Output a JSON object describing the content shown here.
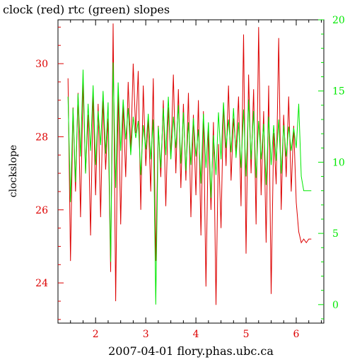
{
  "chart_data": {
    "type": "line",
    "title": "clock (red) rtc (green) slopes",
    "xlabel": "2007-04-01 flory.phas.ubc.ca",
    "ylabel": "clockslope",
    "xlim": [
      1.25,
      6.55
    ],
    "x_ticks": [
      "2",
      "3",
      "4",
      "5",
      "6"
    ],
    "y_left": {
      "lim": [
        22.9,
        31.2
      ],
      "ticks": [
        "24",
        "26",
        "28",
        "30"
      ]
    },
    "y_right": {
      "lim": [
        -1.3,
        20.0
      ],
      "ticks": [
        "0",
        "5",
        "10",
        "15",
        "20"
      ]
    },
    "grid": false,
    "colors": {
      "axes": "#000000",
      "clock": "#dd0000",
      "rtc": "#00e800"
    },
    "series": [
      {
        "name": "clock",
        "axis": "left",
        "color": "#dd0000",
        "x": [
          1.45,
          1.5,
          1.55,
          1.6,
          1.65,
          1.7,
          1.75,
          1.8,
          1.85,
          1.9,
          1.95,
          2.0,
          2.05,
          2.1,
          2.15,
          2.2,
          2.25,
          2.3,
          2.35,
          2.4,
          2.45,
          2.5,
          2.55,
          2.6,
          2.65,
          2.7,
          2.75,
          2.8,
          2.85,
          2.9,
          2.95,
          3.0,
          3.05,
          3.1,
          3.15,
          3.2,
          3.25,
          3.3,
          3.35,
          3.4,
          3.45,
          3.5,
          3.55,
          3.6,
          3.65,
          3.7,
          3.75,
          3.8,
          3.85,
          3.9,
          3.95,
          4.0,
          4.05,
          4.1,
          4.15,
          4.2,
          4.25,
          4.3,
          4.35,
          4.4,
          4.45,
          4.5,
          4.55,
          4.6,
          4.65,
          4.7,
          4.75,
          4.8,
          4.85,
          4.9,
          4.95,
          5.0,
          5.05,
          5.1,
          5.15,
          5.2,
          5.25,
          5.3,
          5.35,
          5.4,
          5.45,
          5.5,
          5.55,
          5.6,
          5.65,
          5.7,
          5.75,
          5.8,
          5.85,
          5.9,
          5.95,
          6.0,
          6.05,
          6.1,
          6.15,
          6.2,
          6.25,
          6.3
        ],
        "values": [
          29.6,
          24.6,
          28.8,
          26.5,
          29.2,
          25.8,
          29.5,
          27.0,
          28.6,
          25.3,
          29.2,
          26.4,
          28.9,
          25.8,
          29.0,
          27.1,
          28.5,
          24.3,
          31.1,
          23.5,
          29.3,
          25.6,
          28.9,
          26.9,
          29.5,
          27.6,
          30.0,
          28.1,
          29.8,
          26.0,
          29.4,
          27.2,
          28.5,
          26.5,
          29.6,
          24.6,
          28.3,
          26.9,
          29.0,
          26.1,
          28.8,
          27.4,
          29.7,
          27.0,
          29.3,
          26.6,
          28.9,
          26.8,
          29.2,
          25.8,
          28.6,
          26.4,
          29.0,
          25.3,
          28.7,
          23.9,
          28.2,
          26.0,
          28.4,
          23.4,
          27.8,
          25.5,
          28.9,
          27.2,
          29.4,
          26.8,
          28.5,
          27.6,
          29.1,
          26.1,
          30.8,
          24.8,
          29.7,
          27.0,
          29.3,
          25.6,
          31.0,
          26.4,
          28.7,
          25.1,
          29.4,
          23.7,
          28.1,
          26.7,
          30.7,
          26.0,
          28.6,
          26.9,
          29.1,
          26.5,
          28.3,
          26.2,
          25.4,
          25.1,
          25.2,
          25.1,
          25.2,
          25.2
        ]
      },
      {
        "name": "rtc",
        "axis": "right",
        "color": "#00e800",
        "x": [
          1.45,
          1.5,
          1.55,
          1.6,
          1.65,
          1.7,
          1.75,
          1.8,
          1.85,
          1.9,
          1.95,
          2.0,
          2.05,
          2.1,
          2.15,
          2.2,
          2.25,
          2.3,
          2.35,
          2.4,
          2.45,
          2.5,
          2.55,
          2.6,
          2.65,
          2.7,
          2.75,
          2.8,
          2.85,
          2.9,
          2.95,
          3.0,
          3.05,
          3.1,
          3.15,
          3.2,
          3.25,
          3.3,
          3.35,
          3.4,
          3.45,
          3.5,
          3.55,
          3.6,
          3.65,
          3.7,
          3.75,
          3.8,
          3.85,
          3.9,
          3.95,
          4.0,
          4.05,
          4.1,
          4.15,
          4.2,
          4.25,
          4.3,
          4.35,
          4.4,
          4.45,
          4.5,
          4.55,
          4.6,
          4.65,
          4.7,
          4.75,
          4.8,
          4.85,
          4.9,
          4.95,
          5.0,
          5.05,
          5.1,
          5.15,
          5.2,
          5.25,
          5.3,
          5.35,
          5.4,
          5.45,
          5.5,
          5.55,
          5.6,
          5.65,
          5.7,
          5.75,
          5.8,
          5.85,
          5.9,
          5.95,
          6.0,
          6.05,
          6.1,
          6.15,
          6.2,
          6.25,
          6.3
        ],
        "values": [
          14.6,
          7.2,
          13.8,
          8.6,
          14.8,
          10.4,
          16.5,
          9.2,
          14.1,
          10.8,
          15.4,
          9.8,
          13.6,
          11.2,
          15.0,
          10.6,
          14.2,
          3.0,
          17.0,
          8.2,
          15.6,
          10.8,
          14.4,
          11.6,
          13.8,
          10.5,
          13.2,
          11.7,
          12.9,
          9.1,
          12.6,
          10.9,
          13.4,
          10.2,
          13.0,
          0.0,
          12.5,
          9.6,
          13.8,
          10.5,
          14.6,
          10.2,
          13.2,
          11.0,
          14.0,
          9.9,
          13.5,
          9.4,
          12.8,
          9.8,
          13.1,
          10.4,
          12.3,
          8.5,
          13.4,
          9.6,
          12.8,
          7.5,
          11.9,
          9.1,
          13.5,
          10.2,
          14.2,
          11.0,
          13.0,
          10.7,
          13.8,
          10.3,
          12.8,
          9.6,
          13.7,
          9.0,
          14.4,
          10.2,
          13.6,
          8.9,
          12.9,
          10.2,
          12.7,
          8.4,
          13.2,
          9.8,
          12.6,
          10.1,
          13.0,
          9.2,
          12.6,
          10.4,
          12.5,
          10.8,
          12.4,
          11.0,
          14.1,
          9.0,
          8.0,
          8.0,
          8.0,
          8.0
        ]
      }
    ]
  }
}
